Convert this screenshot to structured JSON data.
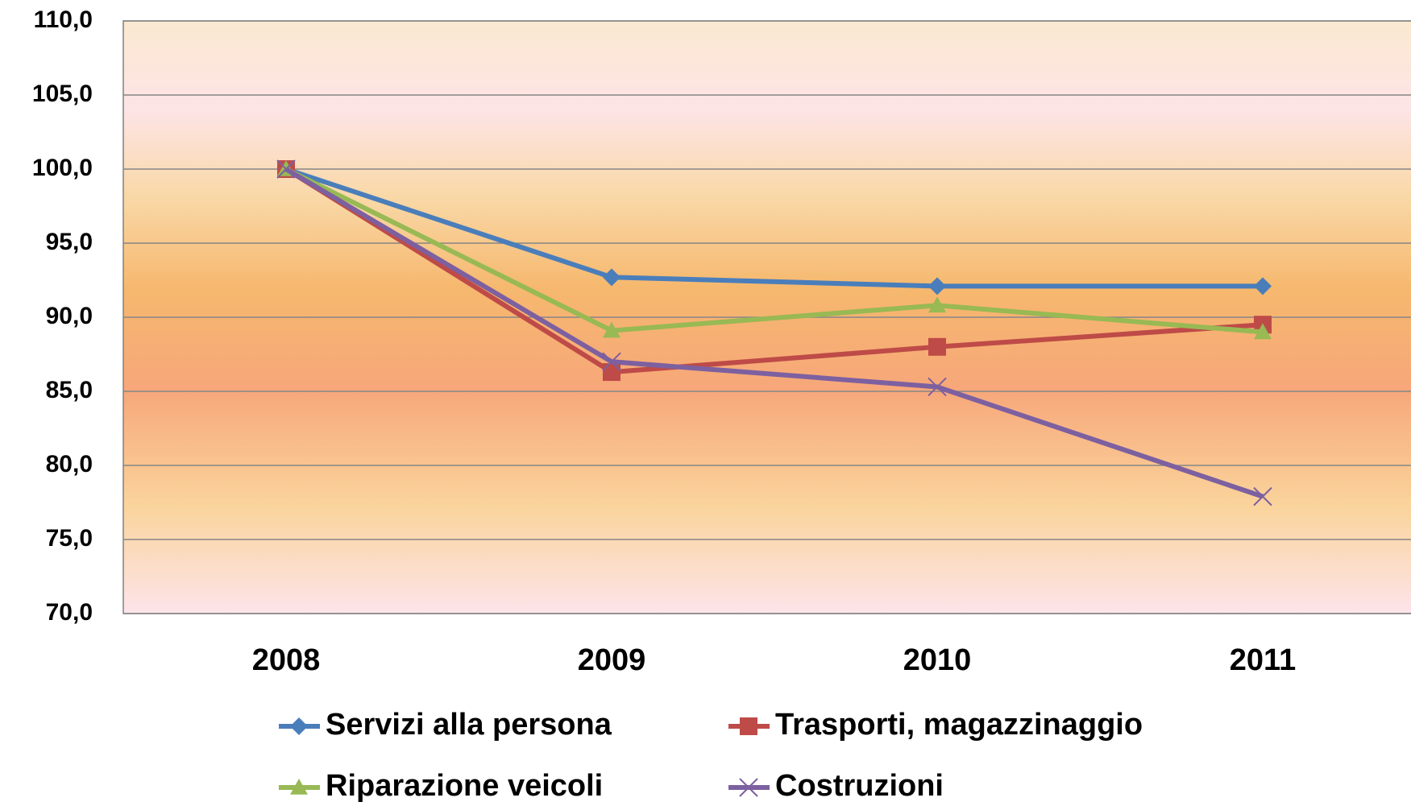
{
  "chart_data": {
    "type": "line",
    "categories": [
      "2008",
      "2009",
      "2010",
      "2011"
    ],
    "series": [
      {
        "name": "Servizi alla persona",
        "color": "#4a7ebb",
        "marker": "diamond",
        "values": [
          100.0,
          92.7,
          92.1,
          92.1
        ]
      },
      {
        "name": "Trasporti, magazzinaggio",
        "color": "#be4b48",
        "marker": "square",
        "values": [
          100.0,
          86.3,
          88.0,
          89.5
        ]
      },
      {
        "name": "Riparazione veicoli",
        "color": "#98b954",
        "marker": "triangle",
        "values": [
          100.0,
          89.1,
          90.8,
          89.0
        ]
      },
      {
        "name": "Costruzioni",
        "color": "#7d60a0",
        "marker": "x",
        "values": [
          100.0,
          87.0,
          85.3,
          77.9
        ]
      }
    ],
    "ylim": [
      70,
      110
    ],
    "yticks": [
      {
        "value": 70,
        "label": "70,0"
      },
      {
        "value": 75,
        "label": "75,0"
      },
      {
        "value": 80,
        "label": "80,0"
      },
      {
        "value": 85,
        "label": "85,0"
      },
      {
        "value": 90,
        "label": "90,0"
      },
      {
        "value": 95,
        "label": "95,0"
      },
      {
        "value": 100,
        "label": "100,0"
      },
      {
        "value": 105,
        "label": "105,0"
      },
      {
        "value": 110,
        "label": "110,0"
      }
    ],
    "grid": true
  }
}
